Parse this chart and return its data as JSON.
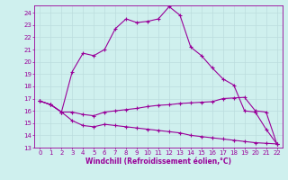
{
  "xlabel": "Windchill (Refroidissement éolien,°C)",
  "bg_color": "#cff0ee",
  "line_color": "#990099",
  "grid_color": "#bbdddd",
  "xlim": [
    -0.5,
    22.5
  ],
  "ylim": [
    13,
    24.6
  ],
  "yticks": [
    13,
    14,
    15,
    16,
    17,
    18,
    19,
    20,
    21,
    22,
    23,
    24
  ],
  "xticks": [
    0,
    1,
    2,
    3,
    4,
    5,
    6,
    7,
    8,
    9,
    10,
    11,
    12,
    13,
    14,
    15,
    16,
    17,
    18,
    19,
    20,
    21,
    22
  ],
  "line1_x": [
    0,
    1,
    2,
    3,
    4,
    5,
    6,
    7,
    8,
    9,
    10,
    11,
    12,
    13,
    14,
    15,
    16,
    17,
    18,
    19,
    20,
    21,
    22
  ],
  "line1_y": [
    16.8,
    16.5,
    15.9,
    15.2,
    14.8,
    14.7,
    14.9,
    14.8,
    14.7,
    14.6,
    14.5,
    14.4,
    14.3,
    14.2,
    14.0,
    13.9,
    13.8,
    13.7,
    13.6,
    13.5,
    13.4,
    13.35,
    13.3
  ],
  "line2_x": [
    0,
    1,
    2,
    3,
    4,
    5,
    6,
    7,
    8,
    9,
    10,
    11,
    12,
    13,
    14,
    15,
    16,
    17,
    18,
    19,
    20,
    21,
    22
  ],
  "line2_y": [
    16.8,
    16.5,
    15.9,
    15.9,
    15.7,
    15.6,
    15.9,
    16.0,
    16.1,
    16.2,
    16.35,
    16.45,
    16.5,
    16.6,
    16.65,
    16.7,
    16.75,
    17.0,
    17.05,
    17.1,
    16.0,
    15.9,
    13.3
  ],
  "line3_x": [
    0,
    1,
    2,
    3,
    4,
    5,
    6,
    7,
    8,
    9,
    10,
    11,
    12,
    13,
    14,
    15,
    16,
    17,
    18,
    19,
    20,
    21,
    22
  ],
  "line3_y": [
    16.8,
    16.5,
    15.9,
    19.2,
    20.7,
    20.5,
    21.0,
    22.7,
    23.5,
    23.2,
    23.3,
    23.5,
    24.5,
    23.8,
    21.2,
    20.5,
    19.5,
    18.6,
    18.1,
    16.0,
    15.9,
    14.5,
    13.3
  ],
  "marker": "+",
  "markersize": 3.5,
  "linewidth": 0.8,
  "axis_fontsize": 5.5,
  "tick_fontsize": 5.0
}
